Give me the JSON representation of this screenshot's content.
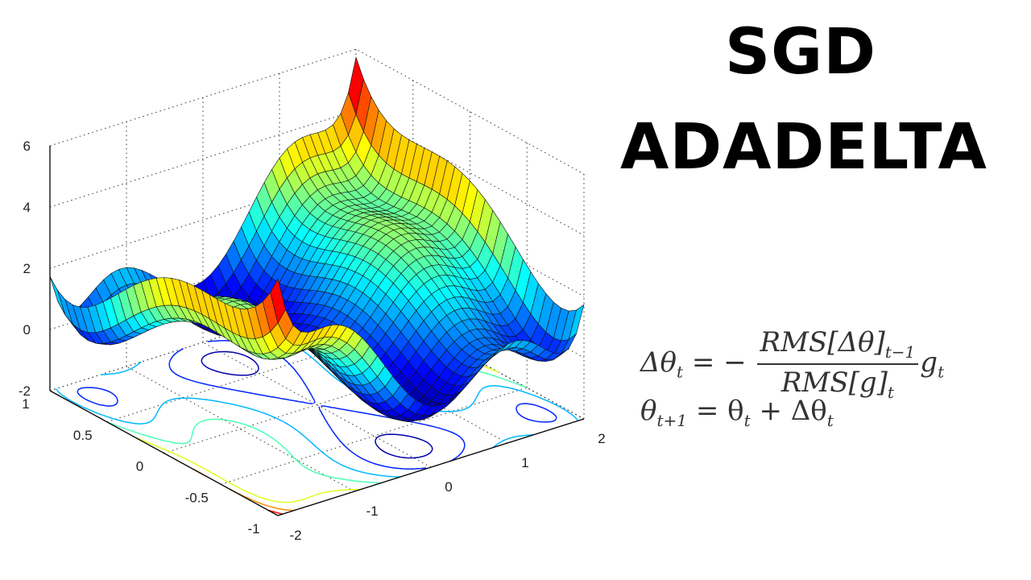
{
  "titles": {
    "line1": "SGD",
    "line2": "ADADELTA"
  },
  "equations": {
    "update": {
      "lhs": "Δθ",
      "lhs_sub": "t",
      "equals": "= −",
      "numerator": "RMS[Δθ]",
      "numerator_sub": "t−1",
      "denominator": "RMS[g]",
      "denominator_sub": "t",
      "factor": "g",
      "factor_sub": "t"
    },
    "step": {
      "lhs": "θ",
      "lhs_sub": "t+1",
      "equals": "= θ",
      "rhs_sub": "t",
      "plus": "+ Δθ",
      "plus_sub": "t"
    }
  },
  "chart_data": {
    "type": "surface",
    "function": "six-hump camel: (4 - 2.1x^2 + x^4/3)x^2 + xy + (-4 + 4y^2)y^2",
    "colormap": "jet",
    "floor_contours": true,
    "grid": true,
    "xlim": [
      -2,
      2
    ],
    "ylim": [
      -1,
      1
    ],
    "zlim": [
      -2,
      6
    ],
    "x_ticks": [
      "-2",
      "-1",
      "0",
      "1",
      "2"
    ],
    "y_ticks": [
      "-1",
      "-0.5",
      "0",
      "0.5",
      "1"
    ],
    "z_ticks": [
      "-2",
      "0",
      "2",
      "4",
      "6"
    ]
  }
}
